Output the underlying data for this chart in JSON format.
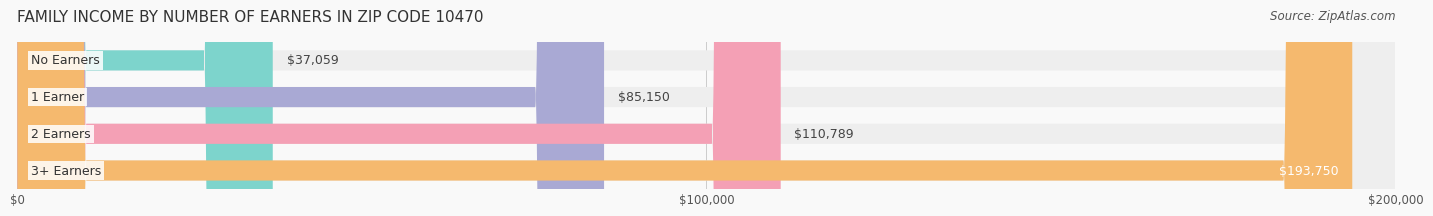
{
  "title": "FAMILY INCOME BY NUMBER OF EARNERS IN ZIP CODE 10470",
  "source": "Source: ZipAtlas.com",
  "categories": [
    "No Earners",
    "1 Earner",
    "2 Earners",
    "3+ Earners"
  ],
  "values": [
    37059,
    85150,
    110789,
    193750
  ],
  "bar_colors": [
    "#7dd4cc",
    "#a9a9d4",
    "#f4a0b5",
    "#f5b96e"
  ],
  "bar_bg_color": "#eeeeee",
  "label_colors": [
    "#333333",
    "#333333",
    "#333333",
    "#ffffff"
  ],
  "xmax": 200000,
  "xtick_labels": [
    "$0",
    "$100,000",
    "$200,000"
  ],
  "xtick_values": [
    0,
    100000,
    200000
  ],
  "background_color": "#f9f9f9",
  "title_fontsize": 11,
  "bar_label_fontsize": 9,
  "category_fontsize": 9,
  "source_fontsize": 8.5
}
